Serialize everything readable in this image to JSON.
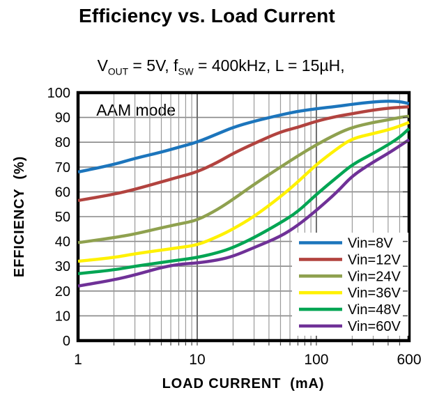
{
  "chart_data": {
    "type": "line",
    "title": "Efficiency vs. Load Current",
    "subtitle_segments": [
      {
        "text": "V"
      },
      {
        "text": "OUT",
        "sub": true
      },
      {
        "text": " = 5V, f"
      },
      {
        "text": "SW",
        "sub": true
      },
      {
        "text": " = 400kHz, L = 15µH,"
      }
    ],
    "subtitle_line2": "AAM mode",
    "xlabel": "LOAD CURRENT  (mA)",
    "ylabel": "EFFICIENCY  (%)",
    "x_scale": "log",
    "xlim": [
      1,
      600
    ],
    "ylim": [
      0,
      100
    ],
    "grid": true,
    "legend_position": "bottom-right",
    "x_tick_values": [
      1,
      10,
      100,
      600
    ],
    "x_tick_labels": [
      "1",
      "10",
      "100",
      "600"
    ],
    "y_tick_values": [
      0,
      10,
      20,
      30,
      40,
      50,
      60,
      70,
      80,
      90,
      100
    ],
    "y_tick_labels": [
      "0",
      "10",
      "20",
      "30",
      "40",
      "50",
      "60",
      "70",
      "80",
      "90",
      "100"
    ],
    "x": [
      1,
      2,
      3,
      5,
      7,
      10,
      15,
      20,
      30,
      50,
      70,
      100,
      150,
      200,
      300,
      400,
      500,
      600
    ],
    "series": [
      {
        "name": "Vin=8V",
        "color": "#1C75BC",
        "values": [
          68,
          71,
          73.5,
          76,
          78,
          80,
          83.5,
          86,
          88.5,
          91,
          92.5,
          93.5,
          94.5,
          95.3,
          96.3,
          96.6,
          96.4,
          95.6
        ]
      },
      {
        "name": "Vin=12V",
        "color": "#B2433F",
        "values": [
          56.5,
          59,
          61,
          64,
          66,
          68,
          72,
          75.5,
          79.5,
          84.2,
          86,
          88.5,
          90.5,
          91.5,
          93,
          93.7,
          94.1,
          94.3
        ]
      },
      {
        "name": "Vin=24V",
        "color": "#8FA14F",
        "values": [
          39.5,
          41.5,
          43,
          45.5,
          47,
          48.5,
          53,
          57,
          63,
          70,
          74.5,
          79,
          83.5,
          86,
          88,
          89,
          90,
          90.5
        ]
      },
      {
        "name": "Vin=36V",
        "color": "#FFF100",
        "values": [
          32,
          33.5,
          35,
          36.5,
          37.5,
          38.5,
          42,
          45,
          50,
          58,
          64,
          71,
          77.5,
          81.5,
          83.5,
          85,
          86.5,
          88
        ]
      },
      {
        "name": "Vin=48V",
        "color": "#00A553",
        "values": [
          27,
          28.5,
          30,
          31.5,
          32.5,
          33.5,
          35.5,
          37.5,
          41.5,
          47.5,
          52,
          59,
          66,
          71,
          75.5,
          79,
          82,
          85.5
        ]
      },
      {
        "name": "Vin=60V",
        "color": "#6F3197",
        "values": [
          22,
          24.5,
          26.5,
          29.5,
          30.8,
          31.3,
          32.5,
          34,
          37.5,
          42,
          46.5,
          52.5,
          60,
          66.5,
          72,
          75.5,
          78.5,
          81
        ]
      }
    ],
    "style": {
      "grid_minor_color": "#9a9a9a",
      "grid_major_color": "#6e6e6e",
      "grid_h_color": "#878787",
      "border_color": "#000000",
      "tick_color": "#444444",
      "legend_bg": "#ffffff"
    }
  }
}
